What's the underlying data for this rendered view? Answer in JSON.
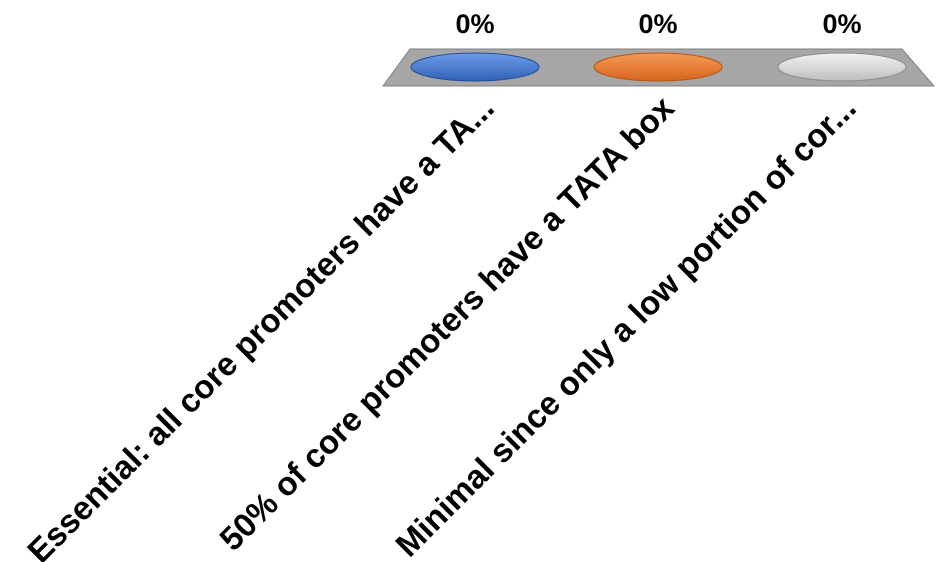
{
  "chart_data": {
    "type": "bar",
    "categories": [
      "Essential: all core promoters have a TA...",
      "50% of core promoters have a TATA box",
      "Minimal since only a low portion of cor..."
    ],
    "values": [
      0,
      0,
      0
    ],
    "value_labels": [
      "0%",
      "0%",
      "0%"
    ],
    "colors": [
      "#4a7fd4",
      "#ed7d31",
      "#d9d9d9"
    ],
    "tray_color": "#a6a6a6",
    "ylim": [
      0,
      100
    ],
    "grid": false,
    "legend": "none",
    "title": "",
    "xlabel": "",
    "ylabel": ""
  }
}
